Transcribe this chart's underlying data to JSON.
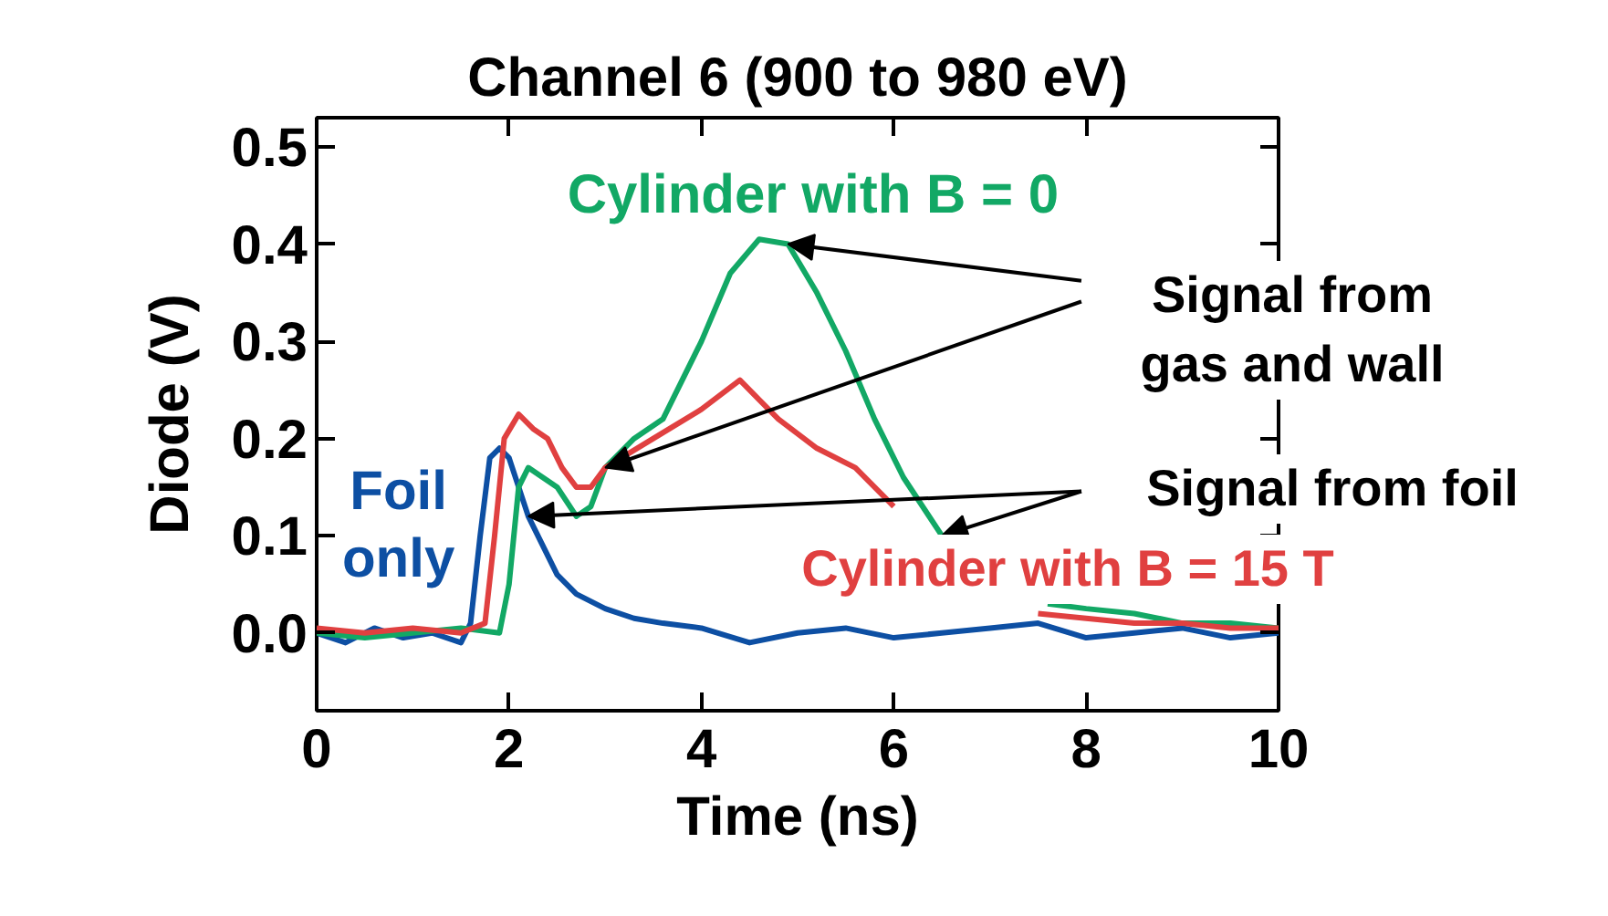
{
  "chart_data": {
    "type": "line",
    "title": "Channel 6 (900 to 980 eV)",
    "xlabel": "Time (ns)",
    "ylabel": "Diode (V)",
    "xlim": [
      0,
      10
    ],
    "ylim": [
      -0.08,
      0.53
    ],
    "xticks": [
      0,
      2,
      4,
      6,
      8,
      10
    ],
    "yticks": [
      {
        "value": 0,
        "label": "0.0"
      },
      0.1,
      0.2,
      0.3,
      0.4,
      0.5
    ],
    "grid": false,
    "line_style": "solid",
    "marker": "none",
    "series": [
      {
        "name": "Foil only",
        "color": "#0d4fa3",
        "x": [
          0,
          0.3,
          0.6,
          0.9,
          1.2,
          1.5,
          1.6,
          1.7,
          1.8,
          1.9,
          2.0,
          2.1,
          2.2,
          2.35,
          2.5,
          2.7,
          3.0,
          3.3,
          3.6,
          4.0,
          4.5,
          5.0,
          5.5,
          6.0,
          6.5,
          7.0,
          7.5,
          8.0,
          8.5,
          9.0,
          9.5,
          10
        ],
        "values": [
          0,
          -0.01,
          0.005,
          -0.005,
          0.0,
          -0.01,
          0.01,
          0.1,
          0.18,
          0.19,
          0.18,
          0.15,
          0.12,
          0.09,
          0.06,
          0.04,
          0.025,
          0.015,
          0.01,
          0.005,
          -0.01,
          0.0,
          0.005,
          -0.005,
          0.0,
          0.005,
          0.01,
          -0.005,
          0.0,
          0.005,
          -0.005,
          0.0
        ]
      },
      {
        "name": "Cylinder with B = 0",
        "color": "#12a865",
        "x": [
          0,
          0.5,
          1.0,
          1.5,
          1.9,
          2.0,
          2.1,
          2.2,
          2.35,
          2.5,
          2.7,
          2.85,
          3.0,
          3.3,
          3.6,
          4.0,
          4.3,
          4.6,
          4.9,
          5.2,
          5.5,
          5.8,
          6.1,
          6.5,
          6.8,
          7.2,
          7.6,
          8.0,
          8.5,
          9.0,
          9.5,
          10
        ],
        "values": [
          0,
          -0.005,
          0.0,
          0.005,
          0.0,
          0.05,
          0.15,
          0.17,
          0.16,
          0.15,
          0.12,
          0.13,
          0.17,
          0.2,
          0.22,
          0.3,
          0.37,
          0.405,
          0.4,
          0.35,
          0.29,
          0.22,
          0.16,
          0.1,
          null,
          null,
          0.03,
          0.025,
          0.02,
          0.01,
          0.01,
          0.005
        ]
      },
      {
        "name": "Cylinder with B = 15 T",
        "color": "#e04040",
        "x": [
          0,
          0.5,
          1.0,
          1.5,
          1.75,
          1.85,
          1.95,
          2.1,
          2.25,
          2.4,
          2.55,
          2.7,
          2.85,
          3.0,
          3.5,
          4.0,
          4.4,
          4.6,
          4.8,
          5.2,
          5.6,
          6.0,
          6.4,
          7.0,
          7.5,
          8.0,
          8.5,
          9.0,
          9.5,
          10
        ],
        "values": [
          0.005,
          0.0,
          0.005,
          0.0,
          0.01,
          0.1,
          0.2,
          0.225,
          0.21,
          0.2,
          0.17,
          0.15,
          0.15,
          0.17,
          0.2,
          0.23,
          0.26,
          0.24,
          0.22,
          0.19,
          0.17,
          0.13,
          null,
          null,
          0.02,
          0.015,
          0.01,
          0.01,
          0.005,
          0.005
        ]
      }
    ],
    "annotations": [
      "Signal from\ngas and wall",
      {
        "text": "Signal from foil",
        "x": 2.2,
        "y": 0.12
      }
    ]
  }
}
